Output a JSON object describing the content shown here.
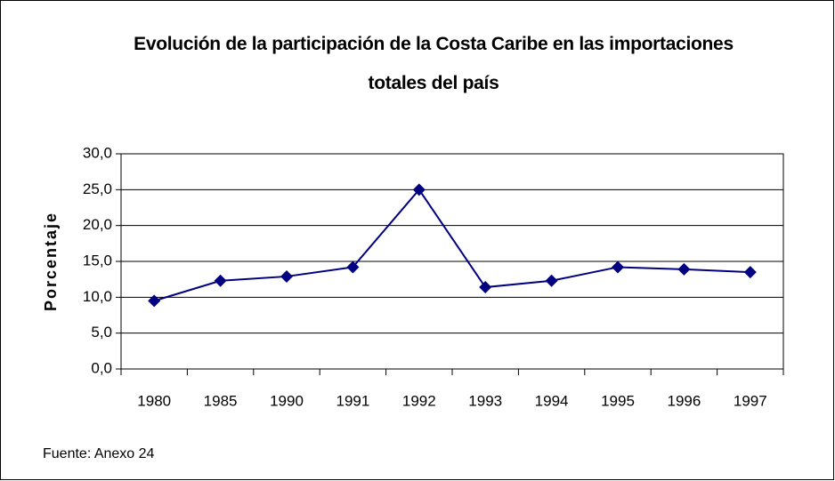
{
  "chart_data": {
    "type": "line",
    "title": "Evolución de la participación de la Costa Caribe en las importaciones totales del país",
    "y_label": "Porcentaje",
    "source": "Fuente: Anexo 24",
    "categories": [
      "1980",
      "1985",
      "1990",
      "1991",
      "1992",
      "1993",
      "1994",
      "1995",
      "1996",
      "1997"
    ],
    "values": [
      9.5,
      12.3,
      12.9,
      14.2,
      25.0,
      11.4,
      12.3,
      14.2,
      13.9,
      13.5
    ],
    "color": "#000080",
    "ylim": [
      0,
      30
    ],
    "yticks": [
      {
        "value": 0,
        "label": "0,0"
      },
      {
        "value": 5,
        "label": "5,0"
      },
      {
        "value": 10,
        "label": "10,0"
      },
      {
        "value": 15,
        "label": "15,0"
      },
      {
        "value": 20,
        "label": "20,0"
      },
      {
        "value": 25,
        "label": "25,0"
      },
      {
        "value": 30,
        "label": "30,0"
      }
    ],
    "grid": true
  }
}
